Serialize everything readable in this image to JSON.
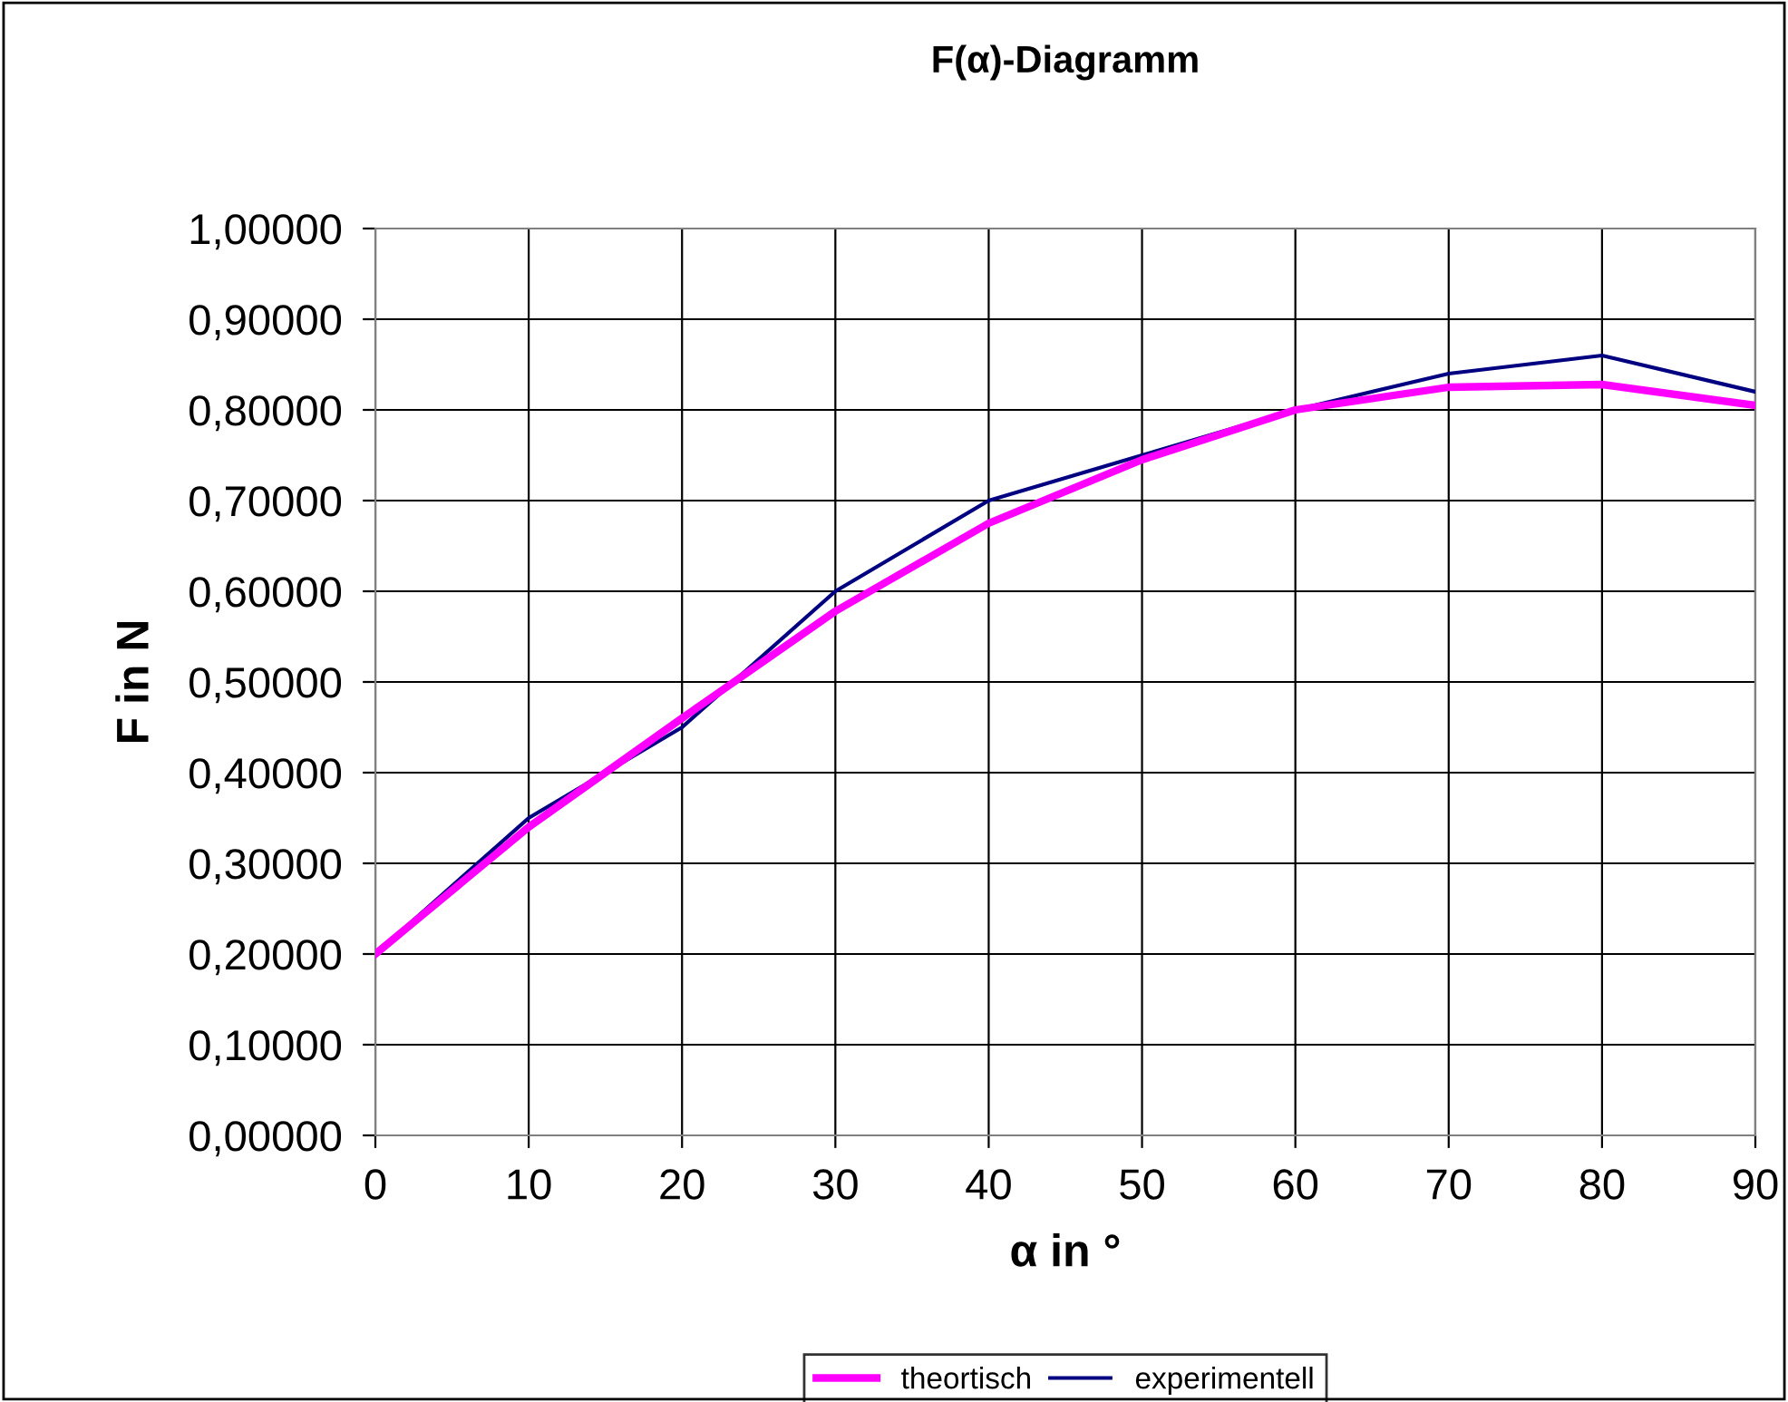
{
  "chart_data": {
    "type": "line",
    "title": "F(α)-Diagramm",
    "xlabel": "α in °",
    "ylabel": "F in N",
    "x": [
      0,
      10,
      20,
      30,
      40,
      50,
      60,
      70,
      80,
      90
    ],
    "series": [
      {
        "name": "theortisch",
        "color": "#ff00ff",
        "values": [
          0.2,
          0.34,
          0.46,
          0.578,
          0.675,
          0.745,
          0.8,
          0.825,
          0.828,
          0.805
        ]
      },
      {
        "name": "experimentell",
        "color": "#000080",
        "values": [
          0.2,
          0.35,
          0.45,
          0.6,
          0.7,
          0.75,
          0.8,
          0.84,
          0.86,
          0.82
        ]
      }
    ],
    "xlim": [
      0,
      90
    ],
    "xticks": [
      0,
      10,
      20,
      30,
      40,
      50,
      60,
      70,
      80,
      90
    ],
    "ylim": [
      0,
      1
    ],
    "yticks": [
      {
        "value": 0,
        "label": "0,00000"
      },
      {
        "value": 0.1,
        "label": "0,10000"
      },
      {
        "value": 0.2,
        "label": "0,20000"
      },
      {
        "value": 0.3,
        "label": "0,30000"
      },
      {
        "value": 0.4,
        "label": "0,40000"
      },
      {
        "value": 0.5,
        "label": "0,50000"
      },
      {
        "value": 0.6,
        "label": "0,60000"
      },
      {
        "value": 0.7,
        "label": "0,70000"
      },
      {
        "value": 0.8,
        "label": "0,80000"
      },
      {
        "value": 0.9,
        "label": "0,90000"
      },
      {
        "value": 1,
        "label": "1,00000"
      }
    ],
    "grid": true,
    "legend": "bottom",
    "marker": "none",
    "line_style": "solid"
  }
}
